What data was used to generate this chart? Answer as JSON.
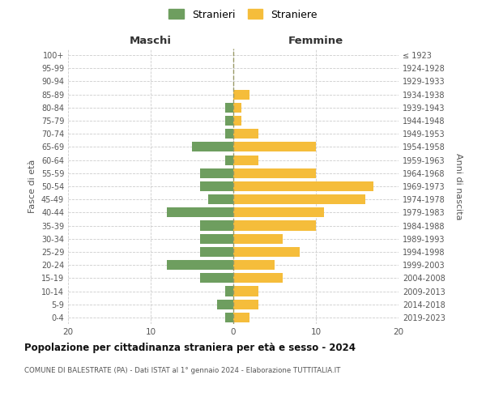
{
  "age_groups": [
    "0-4",
    "5-9",
    "10-14",
    "15-19",
    "20-24",
    "25-29",
    "30-34",
    "35-39",
    "40-44",
    "45-49",
    "50-54",
    "55-59",
    "60-64",
    "65-69",
    "70-74",
    "75-79",
    "80-84",
    "85-89",
    "90-94",
    "95-99",
    "100+"
  ],
  "birth_years": [
    "2019-2023",
    "2014-2018",
    "2009-2013",
    "2004-2008",
    "1999-2003",
    "1994-1998",
    "1989-1993",
    "1984-1988",
    "1979-1983",
    "1974-1978",
    "1969-1973",
    "1964-1968",
    "1959-1963",
    "1954-1958",
    "1949-1953",
    "1944-1948",
    "1939-1943",
    "1934-1938",
    "1929-1933",
    "1924-1928",
    "≤ 1923"
  ],
  "maschi": [
    1,
    2,
    1,
    4,
    8,
    4,
    4,
    4,
    8,
    3,
    4,
    4,
    1,
    5,
    1,
    1,
    1,
    0,
    0,
    0,
    0
  ],
  "femmine": [
    2,
    3,
    3,
    6,
    5,
    8,
    6,
    10,
    11,
    16,
    17,
    10,
    3,
    10,
    3,
    1,
    1,
    2,
    0,
    0,
    0
  ],
  "maschi_color": "#6e9e5f",
  "femmine_color": "#f5bd3b",
  "background_color": "#ffffff",
  "grid_color": "#cccccc",
  "center_line_color": "#999966",
  "title": "Popolazione per cittadinanza straniera per età e sesso - 2024",
  "subtitle": "COMUNE DI BALESTRATE (PA) - Dati ISTAT al 1° gennaio 2024 - Elaborazione TUTTITALIA.IT",
  "xlabel_left": "Maschi",
  "xlabel_right": "Femmine",
  "ylabel_left": "Fasce di età",
  "ylabel_right": "Anni di nascita",
  "legend_maschi": "Stranieri",
  "legend_femmine": "Straniere",
  "xlim": 20,
  "bar_height": 0.75
}
